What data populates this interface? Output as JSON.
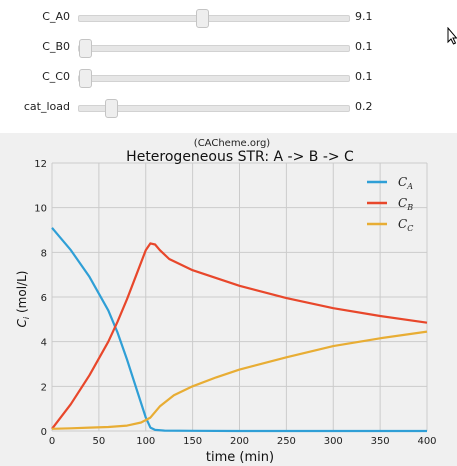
{
  "sliders": [
    {
      "label": "C_A0",
      "value": "9.1",
      "fraction": 0.455
    },
    {
      "label": "C_B0",
      "value": "0.1",
      "fraction": 0.0
    },
    {
      "label": "C_C0",
      "value": "0.1",
      "fraction": 0.0
    },
    {
      "label": "cat_load",
      "value": "0.2",
      "fraction": 0.1
    }
  ],
  "chart_data": {
    "type": "line",
    "subtitle": "(CACheme.org)",
    "title": "Heterogeneous STR: A -> B -> C",
    "xlabel": "time (min)",
    "ylabel": "C_i (mol/L)",
    "xlim": [
      0,
      400
    ],
    "ylim": [
      0,
      12
    ],
    "xticks": [
      "0",
      "50",
      "100",
      "150",
      "200",
      "250",
      "300",
      "350",
      "400"
    ],
    "yticks": [
      "0",
      "2",
      "4",
      "6",
      "8",
      "10",
      "12"
    ],
    "grid": true,
    "legend_position": "top-right",
    "series": [
      {
        "name": "C_A",
        "color": "#2f9fd6",
        "x": [
          0,
          20,
          40,
          60,
          70,
          80,
          90,
          100,
          105,
          110,
          120,
          150,
          200,
          300,
          400
        ],
        "y": [
          9.1,
          8.1,
          6.9,
          5.4,
          4.4,
          3.2,
          1.9,
          0.6,
          0.15,
          0.05,
          0.02,
          0.01,
          0.0,
          0.0,
          0.0
        ]
      },
      {
        "name": "C_B",
        "color": "#e8472b",
        "x": [
          0,
          20,
          40,
          60,
          70,
          80,
          90,
          100,
          105,
          110,
          115,
          125,
          150,
          200,
          250,
          300,
          350,
          400
        ],
        "y": [
          0.1,
          1.2,
          2.5,
          4.0,
          4.9,
          5.9,
          7.0,
          8.1,
          8.4,
          8.35,
          8.1,
          7.7,
          7.2,
          6.5,
          5.95,
          5.5,
          5.15,
          4.85
        ]
      },
      {
        "name": "C_C",
        "color": "#e8ad34",
        "x": [
          0,
          20,
          40,
          60,
          80,
          95,
          105,
          115,
          130,
          150,
          175,
          200,
          250,
          300,
          350,
          400
        ],
        "y": [
          0.1,
          0.12,
          0.15,
          0.18,
          0.24,
          0.38,
          0.6,
          1.1,
          1.6,
          2.0,
          2.4,
          2.75,
          3.3,
          3.8,
          4.15,
          4.45
        ]
      }
    ]
  },
  "icons": {
    "cursor": "mouse-pointer-icon"
  }
}
